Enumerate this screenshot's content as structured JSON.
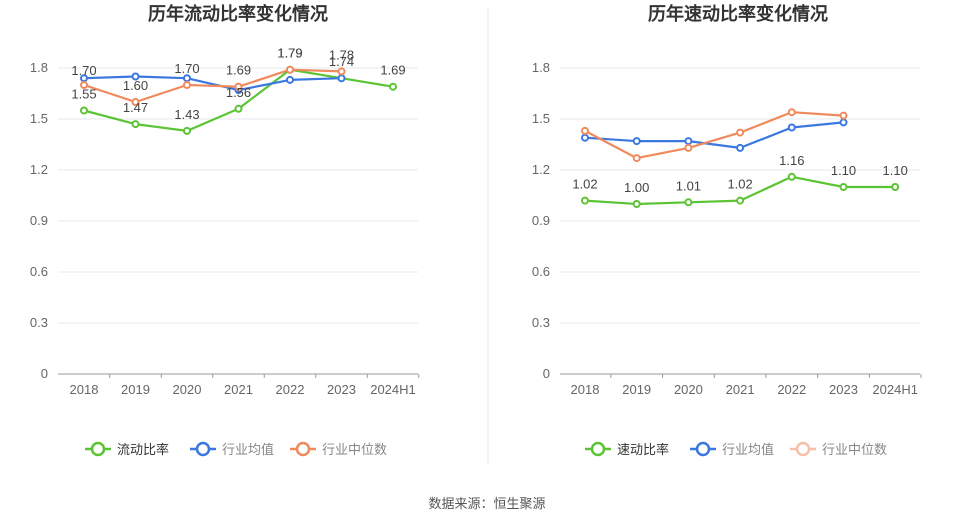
{
  "colors": {
    "green": "#5bc434",
    "blue": "#3a78e0",
    "orange": "#f08a5d",
    "grid": "#e6e9f0",
    "axis": "#999999"
  },
  "source": "数据来源：恒生聚源",
  "chart_data": [
    {
      "type": "line",
      "title": "历年流动比率变化情况",
      "categories": [
        "2018",
        "2019",
        "2020",
        "2021",
        "2022",
        "2023",
        "2024H1"
      ],
      "ylim": [
        0,
        1.8
      ],
      "yticks": [
        "0",
        "0.3",
        "0.6",
        "0.9",
        "1.2",
        "1.5",
        "1.8"
      ],
      "grid": true,
      "legend_position": "bottom",
      "series": [
        {
          "name": "流动比率",
          "color": "#5bc434",
          "values": [
            1.55,
            1.47,
            1.43,
            1.56,
            1.79,
            1.74,
            1.69
          ],
          "labels": [
            "1.55",
            "1.47",
            "1.43",
            "1.56",
            "1.79",
            "1.74",
            "1.69"
          ]
        },
        {
          "name": "行业均值",
          "color": "#3a78e0",
          "values": [
            1.74,
            1.75,
            1.74,
            1.67,
            1.73,
            1.74,
            null
          ]
        },
        {
          "name": "行业中位数",
          "color": "#f08a5d",
          "values": [
            1.7,
            1.6,
            1.7,
            1.69,
            1.79,
            1.78,
            null
          ],
          "labels": [
            "1.70",
            "1.60",
            "1.70",
            "1.69",
            "1.79",
            "1.78",
            null
          ]
        }
      ],
      "legend_faded": [
        false,
        false,
        false
      ]
    },
    {
      "type": "line",
      "title": "历年速动比率变化情况",
      "categories": [
        "2018",
        "2019",
        "2020",
        "2021",
        "2022",
        "2023",
        "2024H1"
      ],
      "ylim": [
        0,
        1.8
      ],
      "yticks": [
        "0",
        "0.3",
        "0.6",
        "0.9",
        "1.2",
        "1.5",
        "1.8"
      ],
      "grid": true,
      "legend_position": "bottom",
      "series": [
        {
          "name": "速动比率",
          "color": "#5bc434",
          "values": [
            1.02,
            1.0,
            1.01,
            1.02,
            1.16,
            1.1,
            1.1
          ],
          "labels": [
            "1.02",
            "1.00",
            "1.01",
            "1.02",
            "1.16",
            "1.10",
            "1.10"
          ]
        },
        {
          "name": "行业均值",
          "color": "#3a78e0",
          "values": [
            1.39,
            1.37,
            1.37,
            1.33,
            1.45,
            1.48,
            null
          ]
        },
        {
          "name": "行业中位数",
          "color": "#f08a5d",
          "values": [
            1.43,
            1.27,
            1.33,
            1.42,
            1.54,
            1.52,
            null
          ]
        }
      ],
      "legend_faded": [
        false,
        false,
        true
      ]
    }
  ]
}
